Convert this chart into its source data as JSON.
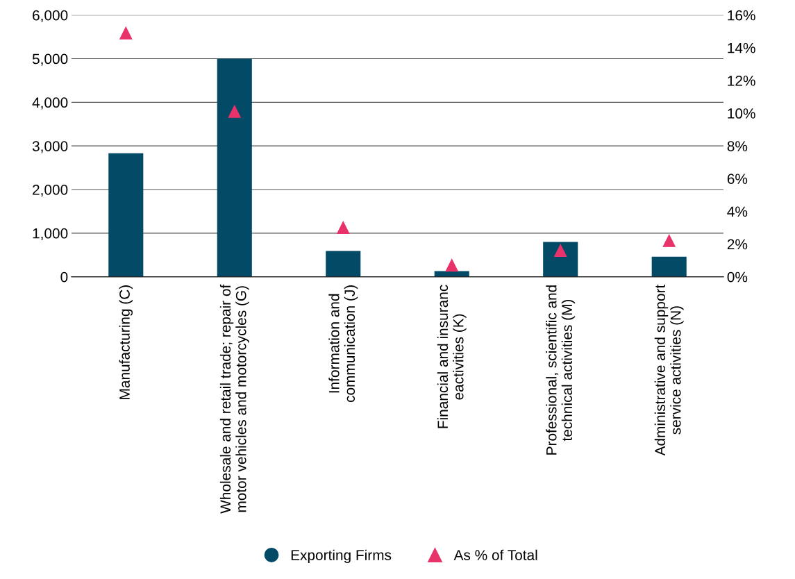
{
  "chart_data": {
    "type": "bar",
    "categories": [
      "Manufacturing (C)",
      "Wholesale and retail trade; repair of\nmotor vehicles and motorcycles (G)",
      "Information and\ncommunication (J)",
      "Financial and insuranc\neactivities (K)",
      "Professional, scientific and\ntechnical activities (M)",
      "Administrative and support\nservice activities (N)"
    ],
    "series": [
      {
        "name": "Exporting Firms",
        "color": "#034a66",
        "values": [
          2830,
          5000,
          590,
          130,
          800,
          460
        ]
      },
      {
        "name": "As % of Total",
        "type": "scatter",
        "axis": "y2",
        "marker": "triangle",
        "color": "#e8336a",
        "values": [
          14.9,
          10.1,
          3.0,
          0.7,
          1.6,
          2.2
        ]
      }
    ],
    "ylim": [
      0,
      6000
    ],
    "yticks": [
      {
        "value": 0,
        "label": "0"
      },
      {
        "value": 1000,
        "label": "1,000"
      },
      {
        "value": 2000,
        "label": "2,000"
      },
      {
        "value": 3000,
        "label": "3,000"
      },
      {
        "value": 4000,
        "label": "4,000"
      },
      {
        "value": 5000,
        "label": "5,000"
      },
      {
        "value": 6000,
        "label": "6,000"
      }
    ],
    "y2lim": [
      0,
      16
    ],
    "y2ticks": [
      {
        "value": 0,
        "label": "0%"
      },
      {
        "value": 2,
        "label": "2%"
      },
      {
        "value": 4,
        "label": "4%"
      },
      {
        "value": 6,
        "label": "6%"
      },
      {
        "value": 8,
        "label": "8%"
      },
      {
        "value": 10,
        "label": "10%"
      },
      {
        "value": 12,
        "label": "12%"
      },
      {
        "value": 14,
        "label": "14%"
      },
      {
        "value": 16,
        "label": "16%"
      }
    ],
    "grid": "y",
    "legend": "bottom"
  }
}
